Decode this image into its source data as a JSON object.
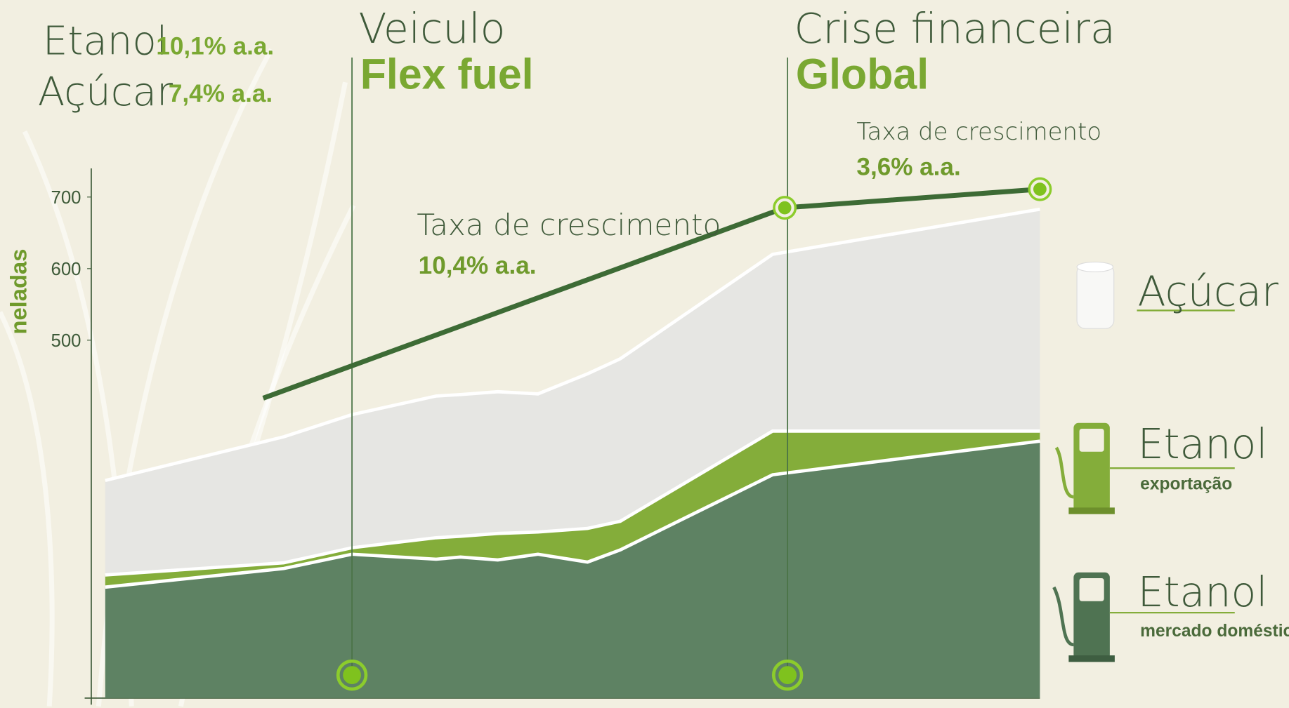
{
  "chart_data": {
    "type": "stacked_area",
    "headline": [
      {
        "label": "Etanol",
        "rate": "10,1% a.a."
      },
      {
        "label": "Açúcar",
        "rate": "7,4% a.a."
      }
    ],
    "ylabel": "neladas",
    "ylim": [
      0,
      740
    ],
    "yticks": [
      500,
      600,
      700
    ],
    "xlim": [
      0,
      100
    ],
    "x": [
      0,
      19.1,
      26.4,
      35.4,
      38.0,
      42.0,
      46.3,
      51.6,
      55.1,
      71.4,
      100
    ],
    "series": [
      {
        "name": "Etanol",
        "sublabel": "mercado doméstico",
        "color": "#5e8263",
        "values": [
          155,
          181,
          201,
          194,
          197,
          193,
          201,
          190,
          207,
          312,
          359
        ]
      },
      {
        "name": "Etanol",
        "sublabel": "exportação",
        "color": "#84ad3a",
        "values": [
          17,
          8,
          9,
          30,
          29,
          37,
          31,
          47,
          40,
          61,
          14
        ]
      },
      {
        "name": "Açúcar",
        "color": "#e6e6e3",
        "values": [
          132,
          176,
          186,
          198,
          198,
          198,
          193,
          216,
          227,
          247,
          310
        ]
      }
    ],
    "line": {
      "color": "#3d6b35",
      "x": [
        16.9,
        72.7,
        100
      ],
      "values": [
        419,
        685,
        711
      ]
    },
    "events": [
      {
        "x": 26.4,
        "title": "Veiculo",
        "subtitle": "Flex fuel"
      },
      {
        "x": 73.0,
        "title": "Crise financeira",
        "subtitle": "Global"
      }
    ],
    "growth": [
      {
        "text": "Taxa de crescimento",
        "rate": "10,4% a.a."
      },
      {
        "text": "Taxa de crescimento",
        "rate": "3,6% a.a."
      }
    ]
  }
}
